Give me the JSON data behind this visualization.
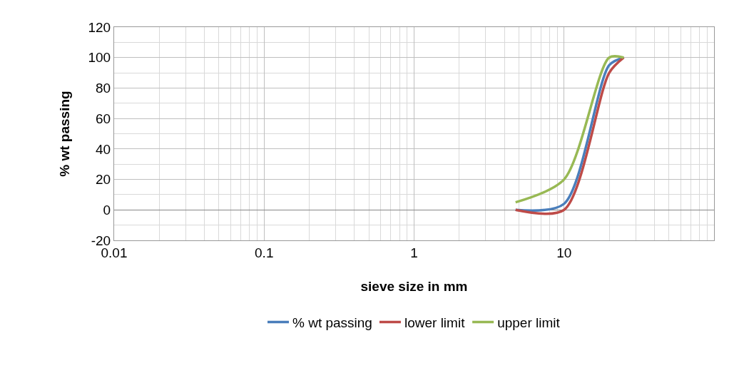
{
  "chart_data": {
    "type": "line",
    "xlabel": "sieve size in mm",
    "ylabel": "% wt passing",
    "x": [
      4.75,
      10,
      20,
      25
    ],
    "series": [
      {
        "name": "% wt passing",
        "color": "#4a7ebb",
        "values": [
          0,
          4,
          95,
          100
        ]
      },
      {
        "name": "lower limit",
        "color": "#be4b48",
        "values": [
          0,
          0,
          90,
          100
        ]
      },
      {
        "name": "upper limit",
        "color": "#98b954",
        "values": [
          5,
          20,
          100,
          100
        ]
      }
    ],
    "log": "x",
    "xlim": [
      0.01,
      100
    ],
    "xticks": [
      0.01,
      0.1,
      1,
      10
    ],
    "ylim": [
      -20,
      120
    ],
    "yticks": [
      -20,
      0,
      20,
      40,
      60,
      80,
      100,
      120
    ],
    "grid": true,
    "legend": "bottom",
    "marker": "none",
    "line_style": "solid"
  }
}
